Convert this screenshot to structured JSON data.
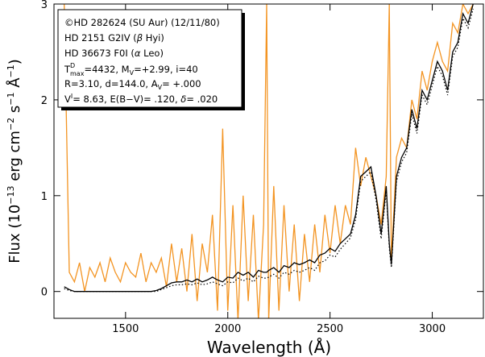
{
  "chart_data": {
    "type": "line",
    "xlabel": "Wavelength (Å)",
    "ylabel": [
      "Flux (10",
      "−13",
      " erg cm",
      "−2",
      " s",
      "−1",
      " Å",
      "−1",
      ")"
    ],
    "annotations": [
      [
        "©HD 282624 (SU Aur) (12/11/80)"
      ],
      [
        "HD 2151 G2IV (",
        "β",
        " Hyi)"
      ],
      [
        "HD 36673 F0I (",
        "α",
        " Leo)"
      ],
      [
        "T",
        "D",
        "max",
        "=4432, M",
        "V",
        "=+2.99, i=40"
      ],
      [
        "R=3.10, d=144.0, A",
        "V",
        "= +.000"
      ],
      [
        "V",
        "I",
        "= 8.63, E(B−V)= .120, ",
        "δ",
        "= .020"
      ]
    ],
    "xlim": [
      1150,
      3250
    ],
    "ylim": [
      -0.28,
      3
    ],
    "xticks": [
      1500,
      2000,
      2500,
      3000
    ],
    "yticks": [
      0,
      1,
      2,
      3
    ],
    "x": [
      1200,
      1225,
      1250,
      1275,
      1300,
      1325,
      1350,
      1375,
      1400,
      1425,
      1450,
      1475,
      1500,
      1525,
      1550,
      1575,
      1600,
      1625,
      1650,
      1675,
      1700,
      1725,
      1750,
      1775,
      1800,
      1825,
      1850,
      1875,
      1900,
      1925,
      1950,
      1975,
      2000,
      2025,
      2050,
      2075,
      2100,
      2125,
      2150,
      2175,
      2190,
      2200,
      2225,
      2250,
      2275,
      2300,
      2325,
      2350,
      2375,
      2400,
      2425,
      2450,
      2475,
      2500,
      2525,
      2550,
      2575,
      2600,
      2625,
      2650,
      2675,
      2700,
      2725,
      2750,
      2775,
      2790,
      2800,
      2825,
      2850,
      2875,
      2900,
      2925,
      2950,
      2975,
      3000,
      3025,
      3050,
      3075,
      3100,
      3125,
      3150,
      3175,
      3200
    ],
    "series": [
      {
        "color": "#f39422",
        "linestyle": "solid",
        "values": [
          3.0,
          0.2,
          0.1,
          0.3,
          0.0,
          0.25,
          0.15,
          0.3,
          0.1,
          0.35,
          0.2,
          0.1,
          0.3,
          0.2,
          0.15,
          0.4,
          0.1,
          0.3,
          0.2,
          0.35,
          0.05,
          0.5,
          0.1,
          0.45,
          0.0,
          0.6,
          -0.1,
          0.5,
          0.2,
          0.8,
          -0.2,
          1.7,
          -0.2,
          0.9,
          -0.3,
          1.0,
          -0.1,
          0.8,
          -0.3,
          0.7,
          3.0,
          -0.3,
          1.1,
          -0.2,
          0.9,
          0.0,
          0.7,
          -0.1,
          0.6,
          0.1,
          0.7,
          0.2,
          0.8,
          0.4,
          0.9,
          0.5,
          0.9,
          0.7,
          1.5,
          1.1,
          1.4,
          1.2,
          1.0,
          0.7,
          1.2,
          3.0,
          0.3,
          1.4,
          1.6,
          1.5,
          2.0,
          1.8,
          2.3,
          2.1,
          2.4,
          2.6,
          2.4,
          2.3,
          2.8,
          2.7,
          3.0,
          2.9,
          3.0
        ]
      },
      {
        "color": "#000000",
        "linestyle": "solid",
        "values": [
          0.05,
          0.02,
          0,
          0,
          0,
          0,
          0,
          0,
          0,
          0,
          0,
          0,
          0,
          0,
          0,
          0,
          0,
          0,
          0.01,
          0.03,
          0.06,
          0.09,
          0.1,
          0.1,
          0.12,
          0.1,
          0.13,
          0.1,
          0.12,
          0.15,
          0.12,
          0.1,
          0.15,
          0.14,
          0.2,
          0.17,
          0.2,
          0.15,
          0.22,
          0.2,
          0.2,
          0.22,
          0.25,
          0.2,
          0.27,
          0.25,
          0.3,
          0.28,
          0.3,
          0.33,
          0.3,
          0.38,
          0.4,
          0.45,
          0.42,
          0.5,
          0.55,
          0.6,
          0.8,
          1.2,
          1.25,
          1.3,
          1.0,
          0.6,
          1.1,
          0.5,
          0.28,
          1.2,
          1.4,
          1.5,
          1.9,
          1.7,
          2.1,
          2.0,
          2.2,
          2.4,
          2.3,
          2.1,
          2.5,
          2.6,
          2.9,
          2.8,
          3.0
        ]
      },
      {
        "color": "#000000",
        "linestyle": "dotted",
        "values": [
          0.03,
          0.01,
          0,
          0,
          0,
          0,
          0,
          0,
          0,
          0,
          0,
          0,
          0,
          0,
          0,
          0,
          0,
          0,
          0.0,
          0.02,
          0.04,
          0.06,
          0.07,
          0.07,
          0.08,
          0.07,
          0.09,
          0.07,
          0.08,
          0.1,
          0.08,
          0.06,
          0.1,
          0.09,
          0.14,
          0.11,
          0.14,
          0.1,
          0.16,
          0.14,
          0.14,
          0.15,
          0.18,
          0.14,
          0.2,
          0.18,
          0.22,
          0.2,
          0.22,
          0.25,
          0.22,
          0.3,
          0.32,
          0.38,
          0.36,
          0.44,
          0.5,
          0.56,
          0.75,
          1.15,
          1.2,
          1.25,
          0.95,
          0.55,
          1.05,
          0.45,
          0.25,
          1.15,
          1.35,
          1.45,
          1.85,
          1.65,
          2.05,
          1.95,
          2.15,
          2.35,
          2.25,
          2.05,
          2.45,
          2.55,
          2.85,
          2.75,
          2.95
        ]
      }
    ]
  }
}
